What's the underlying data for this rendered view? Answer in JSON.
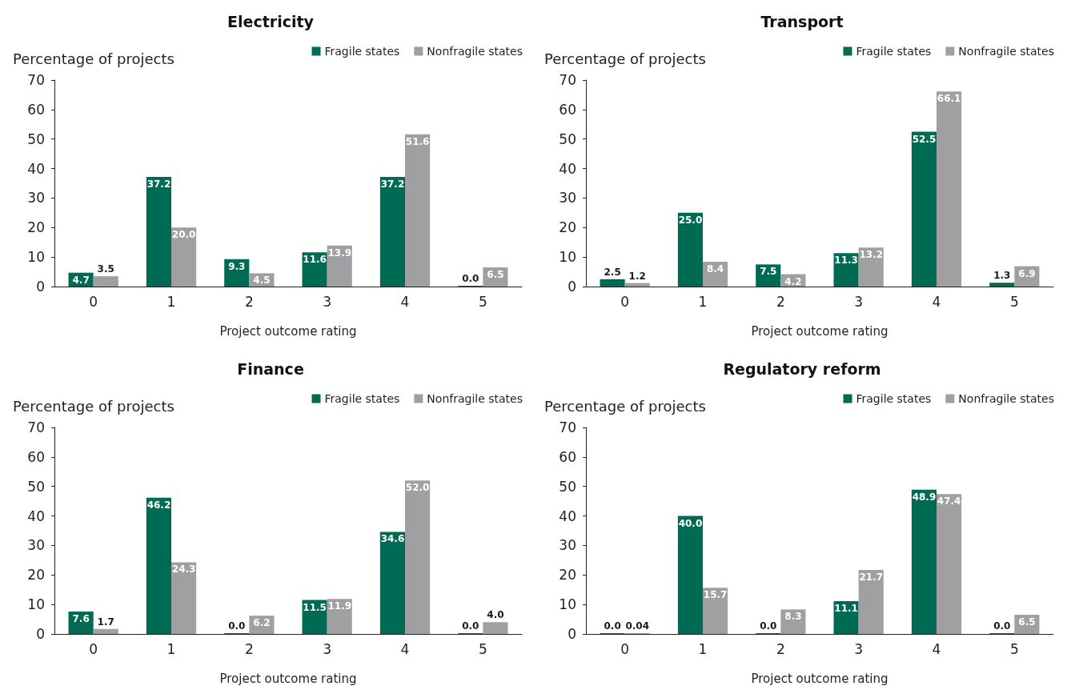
{
  "chart_data": [
    {
      "type": "bar",
      "title": "Electricity",
      "xlabel": "Project outcome rating",
      "ylabel": "Percentage of projects",
      "categories": [
        "0",
        "1",
        "2",
        "3",
        "4",
        "5"
      ],
      "ylim": [
        0,
        70
      ],
      "yticks": [
        0,
        10,
        20,
        30,
        40,
        50,
        60,
        70
      ],
      "grid": false,
      "legend": "top right",
      "series": [
        {
          "name": "Fragile states",
          "color": "#006b54",
          "values": [
            4.7,
            37.2,
            9.3,
            11.6,
            37.2,
            0.0
          ],
          "value_labels": [
            "4.7",
            "37.2",
            "9.3",
            "11.6",
            "37.2",
            "0.0"
          ]
        },
        {
          "name": "Nonfragile states",
          "color": "#a0a0a3",
          "values": [
            3.5,
            20.0,
            4.5,
            13.9,
            51.6,
            6.5
          ],
          "value_labels": [
            "3.5",
            "20.0",
            "4.5",
            "13.9",
            "51.6",
            "6.5"
          ]
        }
      ]
    },
    {
      "type": "bar",
      "title": "Transport",
      "xlabel": "Project outcome rating",
      "ylabel": "Percentage of projects",
      "categories": [
        "0",
        "1",
        "2",
        "3",
        "4",
        "5"
      ],
      "ylim": [
        0,
        70
      ],
      "yticks": [
        0,
        10,
        20,
        30,
        40,
        50,
        60,
        70
      ],
      "grid": false,
      "legend": "top right",
      "series": [
        {
          "name": "Fragile states",
          "color": "#006b54",
          "values": [
            2.5,
            25.0,
            7.5,
            11.3,
            52.5,
            1.3
          ],
          "value_labels": [
            "2.5",
            "25.0",
            "7.5",
            "11.3",
            "52.5",
            "1.3"
          ]
        },
        {
          "name": "Nonfragile states",
          "color": "#a0a0a3",
          "values": [
            1.2,
            8.4,
            4.2,
            13.2,
            66.1,
            6.9
          ],
          "value_labels": [
            "1.2",
            "8.4",
            "4.2",
            "13.2",
            "66.1",
            "6.9"
          ]
        }
      ]
    },
    {
      "type": "bar",
      "title": "Finance",
      "xlabel": "Project outcome rating",
      "ylabel": "Percentage of projects",
      "categories": [
        "0",
        "1",
        "2",
        "3",
        "4",
        "5"
      ],
      "ylim": [
        0,
        70
      ],
      "yticks": [
        0,
        10,
        20,
        30,
        40,
        50,
        60,
        70
      ],
      "grid": false,
      "legend": "top right",
      "series": [
        {
          "name": "Fragile states",
          "color": "#006b54",
          "values": [
            7.6,
            46.2,
            0.0,
            11.5,
            34.6,
            0.0
          ],
          "value_labels": [
            "7.6",
            "46.2",
            "0.0",
            "11.5",
            "34.6",
            "0.0"
          ]
        },
        {
          "name": "Nonfragile states",
          "color": "#a0a0a3",
          "values": [
            1.7,
            24.3,
            6.2,
            11.9,
            52.0,
            4.0
          ],
          "value_labels": [
            "1.7",
            "24.3",
            "6.2",
            "11.9",
            "52.0",
            "4.0"
          ]
        }
      ]
    },
    {
      "type": "bar",
      "title": "Regulatory reform",
      "xlabel": "Project outcome rating",
      "ylabel": "Percentage of projects",
      "categories": [
        "0",
        "1",
        "2",
        "3",
        "4",
        "5"
      ],
      "ylim": [
        0,
        70
      ],
      "yticks": [
        0,
        10,
        20,
        30,
        40,
        50,
        60,
        70
      ],
      "grid": false,
      "legend": "top right",
      "series": [
        {
          "name": "Fragile states",
          "color": "#006b54",
          "values": [
            0.0,
            40.0,
            0.0,
            11.1,
            48.9,
            0.0
          ],
          "value_labels": [
            "0.0",
            "40.0",
            "0.0",
            "11.1",
            "48.9",
            "0.0"
          ]
        },
        {
          "name": "Nonfragile states",
          "color": "#a0a0a3",
          "values": [
            0.04,
            15.7,
            8.3,
            21.7,
            47.4,
            6.5
          ],
          "value_labels": [
            "0.04",
            "15.7",
            "8.3",
            "21.7",
            "47.4",
            "6.5"
          ]
        }
      ]
    }
  ]
}
